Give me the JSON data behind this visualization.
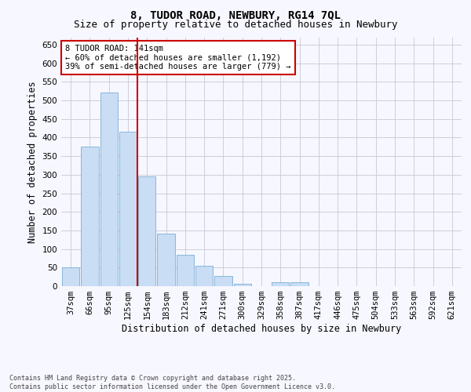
{
  "title": "8, TUDOR ROAD, NEWBURY, RG14 7QL",
  "subtitle": "Size of property relative to detached houses in Newbury",
  "xlabel": "Distribution of detached houses by size in Newbury",
  "ylabel": "Number of detached properties",
  "categories": [
    "37sqm",
    "66sqm",
    "95sqm",
    "125sqm",
    "154sqm",
    "183sqm",
    "212sqm",
    "241sqm",
    "271sqm",
    "300sqm",
    "329sqm",
    "358sqm",
    "387sqm",
    "417sqm",
    "446sqm",
    "475sqm",
    "504sqm",
    "533sqm",
    "563sqm",
    "592sqm",
    "621sqm"
  ],
  "values": [
    50,
    375,
    522,
    415,
    295,
    142,
    85,
    55,
    28,
    7,
    0,
    10,
    10,
    0,
    0,
    0,
    0,
    0,
    0,
    0,
    0
  ],
  "bar_color": "#c9ddf5",
  "bar_edge_color": "#7aafd4",
  "vline_color": "#cc0000",
  "property_line_xval": 3.5,
  "annotation_text": "8 TUDOR ROAD: 141sqm\n← 60% of detached houses are smaller (1,192)\n39% of semi-detached houses are larger (779) →",
  "annotation_box_color": "#ffffff",
  "annotation_box_edge_color": "#cc0000",
  "footer_line1": "Contains HM Land Registry data © Crown copyright and database right 2025.",
  "footer_line2": "Contains public sector information licensed under the Open Government Licence v3.0.",
  "ylim": [
    0,
    670
  ],
  "yticks": [
    0,
    50,
    100,
    150,
    200,
    250,
    300,
    350,
    400,
    450,
    500,
    550,
    600,
    650
  ],
  "background_color": "#f7f7ff",
  "grid_color": "#c8c8d8",
  "title_fontsize": 10,
  "subtitle_fontsize": 9,
  "axis_label_fontsize": 8.5,
  "tick_fontsize": 7.5,
  "annotation_fontsize": 7.5,
  "footer_fontsize": 6
}
